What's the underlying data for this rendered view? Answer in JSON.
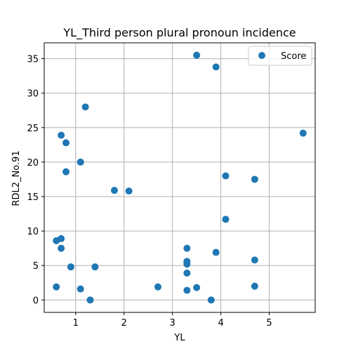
{
  "chart_data": {
    "type": "scatter",
    "title": "YL_Third person plural pronoun incidence",
    "xlabel": "YL",
    "ylabel": "RDL2_No.91",
    "xlim": [
      0.35,
      5.95
    ],
    "ylim": [
      -1.8,
      37.3
    ],
    "xticks": [
      1,
      2,
      3,
      4,
      5
    ],
    "yticks": [
      0,
      5,
      10,
      15,
      20,
      25,
      30,
      35
    ],
    "grid": true,
    "legend_position": "upper-right",
    "marker_color": "#1f77b4",
    "series": [
      {
        "name": "Score",
        "points": [
          [
            0.6,
            1.9
          ],
          [
            0.6,
            8.6
          ],
          [
            0.7,
            8.9
          ],
          [
            0.7,
            7.5
          ],
          [
            0.7,
            23.9
          ],
          [
            0.8,
            22.8
          ],
          [
            0.8,
            18.6
          ],
          [
            0.9,
            4.8
          ],
          [
            1.1,
            20.0
          ],
          [
            1.1,
            1.6
          ],
          [
            1.2,
            28.0
          ],
          [
            1.3,
            0.0
          ],
          [
            1.4,
            4.8
          ],
          [
            1.8,
            15.9
          ],
          [
            2.1,
            15.8
          ],
          [
            2.7,
            1.9
          ],
          [
            3.3,
            7.5
          ],
          [
            3.3,
            5.6
          ],
          [
            3.3,
            5.2
          ],
          [
            3.3,
            3.9
          ],
          [
            3.3,
            1.4
          ],
          [
            3.5,
            35.5
          ],
          [
            3.5,
            1.8
          ],
          [
            3.8,
            0.0
          ],
          [
            3.9,
            33.8
          ],
          [
            3.9,
            6.9
          ],
          [
            4.1,
            18.0
          ],
          [
            4.1,
            11.7
          ],
          [
            4.7,
            17.5
          ],
          [
            4.7,
            5.8
          ],
          [
            4.7,
            2.0
          ],
          [
            5.7,
            24.2
          ]
        ]
      }
    ]
  }
}
